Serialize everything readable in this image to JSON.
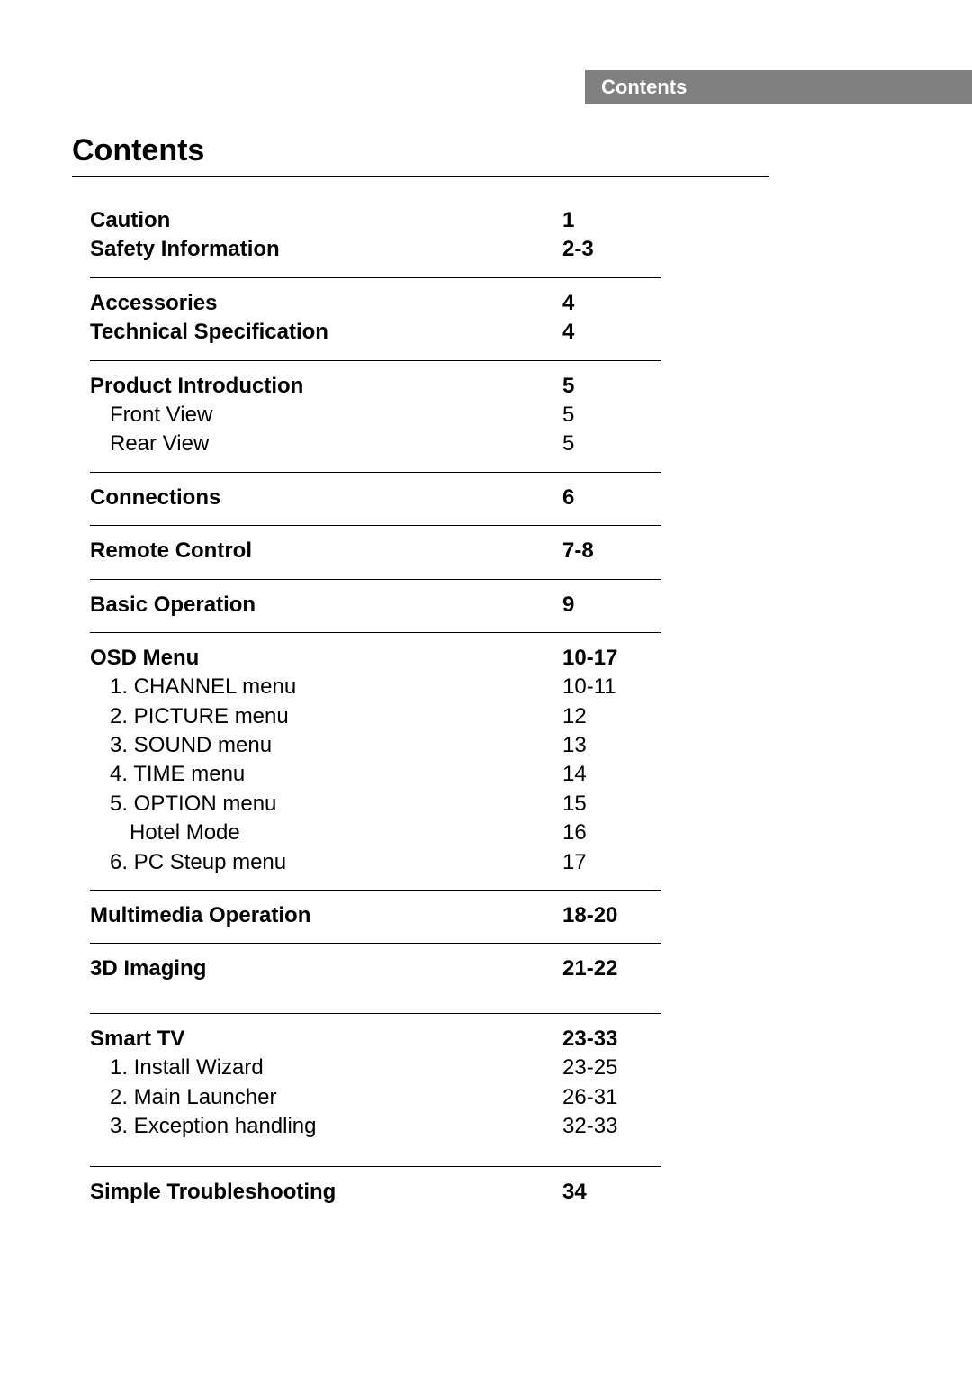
{
  "header_tab": "Contents",
  "title": "Contents",
  "sections": [
    {
      "rows": [
        {
          "label": "Caution",
          "pages": "1",
          "bold": true,
          "indent": 0
        },
        {
          "label": "Safety Information",
          "pages": "2-3",
          "bold": true,
          "indent": 0
        }
      ]
    },
    {
      "rows": [
        {
          "label": "Accessories",
          "pages": "4",
          "bold": true,
          "indent": 0
        },
        {
          "label": "Technical Specification",
          "pages": "4",
          "bold": true,
          "indent": 0
        }
      ]
    },
    {
      "rows": [
        {
          "label": "Product Introduction",
          "pages": "5",
          "bold": true,
          "indent": 0
        },
        {
          "label": "Front View",
          "pages": "5",
          "bold": false,
          "indent": 1
        },
        {
          "label": "Rear View",
          "pages": "5",
          "bold": false,
          "indent": 1
        }
      ]
    },
    {
      "rows": [
        {
          "label": "Connections",
          "pages": "6",
          "bold": true,
          "indent": 0
        }
      ]
    },
    {
      "rows": [
        {
          "label": "Remote Control",
          "pages": "7-8",
          "bold": true,
          "indent": 0
        }
      ]
    },
    {
      "rows": [
        {
          "label": "Basic Operation",
          "pages": "9",
          "bold": true,
          "indent": 0
        }
      ]
    },
    {
      "rows": [
        {
          "label": "OSD Menu",
          "pages": "10-17",
          "bold": true,
          "indent": 0
        },
        {
          "label": "1. CHANNEL menu",
          "pages": "10-11",
          "bold": false,
          "indent": 1
        },
        {
          "label": "2. PICTURE menu",
          "pages": "12",
          "bold": false,
          "indent": 1
        },
        {
          "label": "3. SOUND menu",
          "pages": "13",
          "bold": false,
          "indent": 1
        },
        {
          "label": "4. TIME menu",
          "pages": "14",
          "bold": false,
          "indent": 1
        },
        {
          "label": "5. OPTION menu",
          "pages": "15",
          "bold": false,
          "indent": 1
        },
        {
          "label": "Hotel Mode",
          "pages": "16",
          "bold": false,
          "indent": 2
        },
        {
          "label": "6. PC Steup menu",
          "pages": "17",
          "bold": false,
          "indent": 1
        }
      ]
    },
    {
      "rows": [
        {
          "label": "Multimedia Operation",
          "pages": "18-20",
          "bold": true,
          "indent": 0
        }
      ]
    },
    {
      "rows": [
        {
          "label": "3D Imaging",
          "pages": "21-22",
          "bold": true,
          "indent": 0
        }
      ],
      "gap_after": "gap-before-smart"
    },
    {
      "rows": [
        {
          "label": "Smart TV",
          "pages": "23-33",
          "bold": true,
          "indent": 0
        },
        {
          "label": "1. Install Wizard",
          "pages": "23-25",
          "bold": false,
          "indent": 1
        },
        {
          "label": "2. Main Launcher",
          "pages": "26-31",
          "bold": false,
          "indent": 1
        },
        {
          "label": "3. Exception handling",
          "pages": "32-33",
          "bold": false,
          "indent": 1
        }
      ],
      "gap_after": "gap-after-exception"
    },
    {
      "rows": [
        {
          "label": "Simple Troubleshooting",
          "pages": "34",
          "bold": true,
          "indent": 0
        }
      ],
      "no_rule_after": true
    }
  ]
}
